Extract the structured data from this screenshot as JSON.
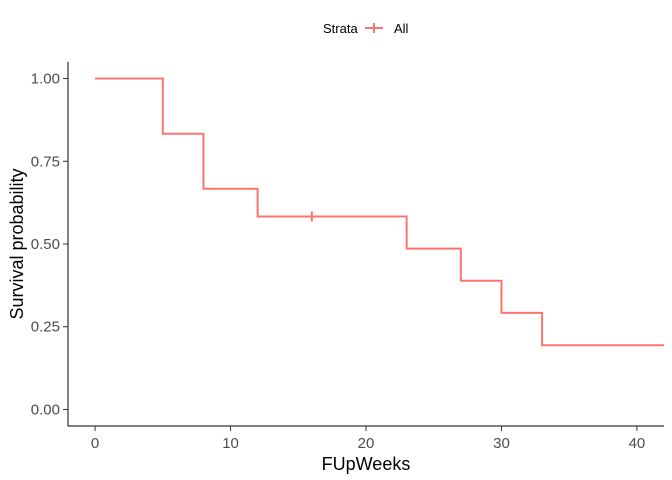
{
  "chart_data": {
    "type": "line",
    "subtype": "kaplan-meier step",
    "xlabel": "FUpWeeks",
    "ylabel": "Survival probability",
    "xlim": [
      -2,
      42
    ],
    "ylim": [
      -0.05,
      1.05
    ],
    "xticks": [
      0,
      10,
      20,
      30,
      40
    ],
    "yticks": [
      0.0,
      0.25,
      0.5,
      0.75,
      1.0
    ],
    "ytick_labels": [
      "0.00",
      "0.25",
      "0.50",
      "0.75",
      "1.00"
    ],
    "xtick_labels": [
      "0",
      "10",
      "20",
      "30",
      "40"
    ],
    "grid": false,
    "legend": {
      "position": "top",
      "title": "Strata",
      "entries": [
        {
          "label": "All",
          "color": "#F8766D"
        }
      ]
    },
    "series": [
      {
        "name": "All",
        "color": "#F8766D",
        "step_times": [
          0,
          5,
          8,
          12,
          23,
          27,
          30,
          33,
          42
        ],
        "survival": [
          1.0,
          0.833,
          0.667,
          0.583,
          0.486,
          0.389,
          0.292,
          0.194,
          0.194
        ],
        "censored": [
          {
            "x": 16,
            "y": 0.583
          }
        ]
      }
    ]
  }
}
